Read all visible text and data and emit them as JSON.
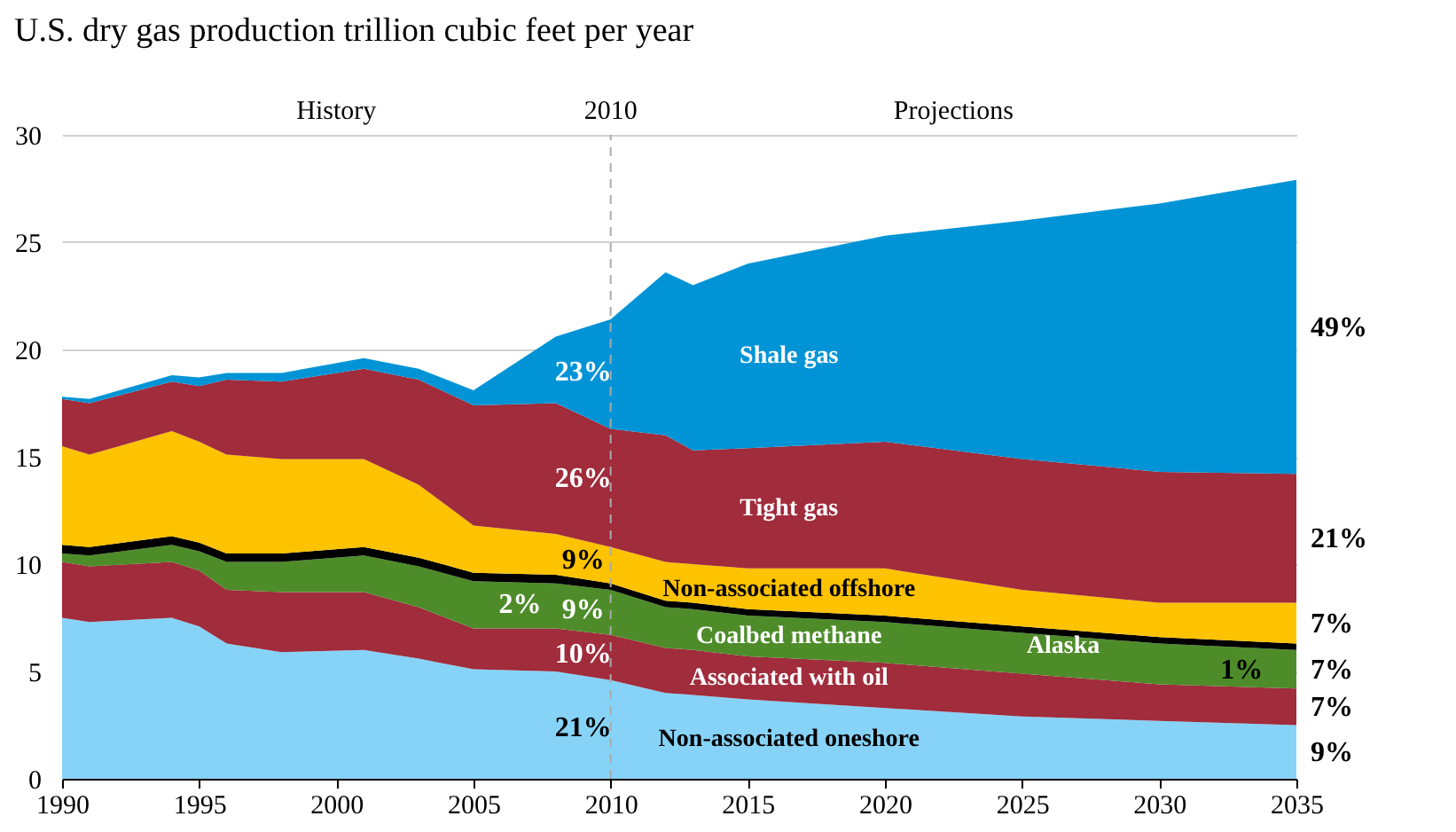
{
  "chart_data": {
    "type": "area",
    "stacked": true,
    "title": "U.S. dry gas production trillion cubic feet per year",
    "x": [
      1990,
      1991,
      1994,
      1995,
      1996,
      1998,
      2001,
      2003,
      2005,
      2008,
      2010,
      2012,
      2013,
      2015,
      2020,
      2025,
      2030,
      2035
    ],
    "series": [
      {
        "name": "Non-associated oneshore",
        "color": "#87d3f8",
        "values": [
          7.5,
          7.3,
          7.5,
          7.1,
          6.3,
          5.9,
          6.0,
          5.6,
          5.1,
          5.0,
          4.6,
          4.0,
          3.9,
          3.7,
          3.3,
          2.9,
          2.7,
          2.5
        ]
      },
      {
        "name": "Associated with oil",
        "color": "#a02c3c",
        "values": [
          2.6,
          2.6,
          2.6,
          2.6,
          2.5,
          2.8,
          2.7,
          2.4,
          1.9,
          2.0,
          2.1,
          2.1,
          2.1,
          2.0,
          2.1,
          2.0,
          1.7,
          1.7
        ]
      },
      {
        "name": "Coalbed methane",
        "color": "#4e8c2a",
        "values": [
          0.4,
          0.5,
          0.8,
          0.9,
          1.3,
          1.4,
          1.7,
          1.9,
          2.2,
          2.1,
          2.1,
          1.9,
          1.9,
          1.9,
          1.9,
          1.9,
          1.9,
          1.8
        ]
      },
      {
        "name": "Alaska",
        "color": "#000000",
        "values": [
          0.4,
          0.4,
          0.4,
          0.4,
          0.4,
          0.4,
          0.4,
          0.4,
          0.4,
          0.4,
          0.3,
          0.3,
          0.3,
          0.3,
          0.3,
          0.3,
          0.3,
          0.3
        ]
      },
      {
        "name": "Non-associated offshore",
        "color": "#fdc200",
        "values": [
          4.6,
          4.3,
          4.9,
          4.7,
          4.6,
          4.4,
          4.1,
          3.4,
          2.2,
          1.9,
          1.7,
          1.8,
          1.8,
          1.9,
          2.2,
          1.7,
          1.6,
          1.9
        ]
      },
      {
        "name": "Tight gas",
        "color": "#a02c3c",
        "values": [
          2.2,
          2.4,
          2.3,
          2.6,
          3.5,
          3.6,
          4.2,
          4.9,
          5.6,
          6.1,
          5.5,
          5.9,
          5.3,
          5.6,
          5.9,
          6.1,
          6.1,
          6.0
        ]
      },
      {
        "name": "Shale gas",
        "color": "#0094d6",
        "values": [
          0.1,
          0.2,
          0.3,
          0.4,
          0.3,
          0.4,
          0.5,
          0.5,
          0.7,
          3.1,
          5.1,
          7.6,
          7.7,
          8.6,
          9.6,
          11.1,
          12.5,
          13.7
        ]
      }
    ],
    "xlim": [
      1990,
      2035
    ],
    "ylim": [
      0,
      30
    ],
    "xticks": [
      1990,
      1995,
      2000,
      2005,
      2010,
      2015,
      2020,
      2025,
      2030,
      2035
    ],
    "yticks": [
      0,
      5,
      10,
      15,
      20,
      25,
      30
    ],
    "grid": "y",
    "legend": false,
    "ref_lines": [
      {
        "axis": "x",
        "value": 2010,
        "label": "2010",
        "color": "#aaaaaa",
        "line_style": "dashed"
      }
    ],
    "annotations": [
      "History",
      "Projections",
      "23%",
      "26%",
      "9%",
      "2%",
      "9%",
      "10%",
      "21%",
      "49%",
      "21%",
      "7%",
      "1%",
      "7%",
      "7%",
      "9%"
    ]
  }
}
